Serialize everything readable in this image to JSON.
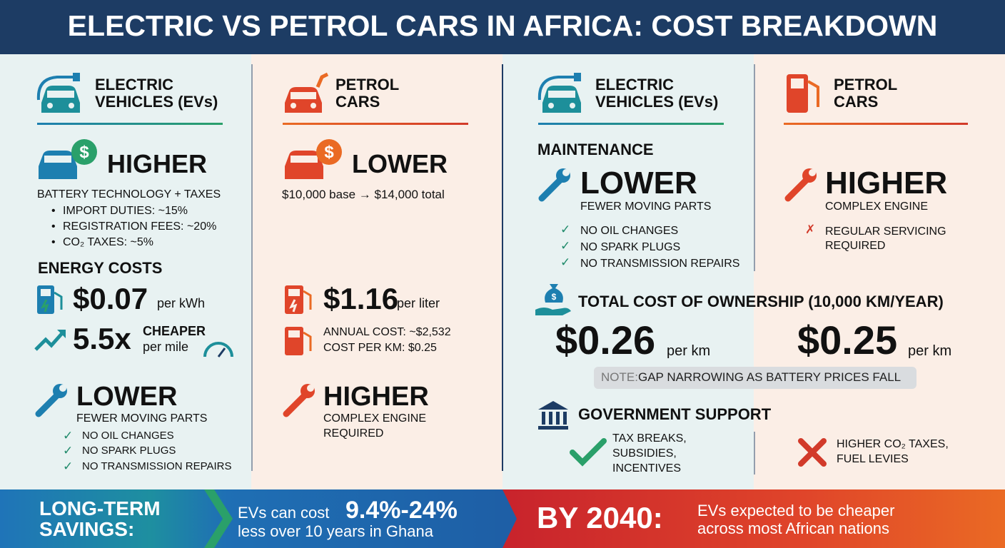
{
  "title": "ELECTRIC VS PETROL CARS IN AFRICA: COST BREAKDOWN",
  "left": {
    "ev_header": "ELECTRIC VEHICLES (EVs)",
    "petrol_header": "PETROL CARS",
    "purchase": {
      "ev": {
        "level": "HIGHER",
        "reason": "BATTERY TECHNOLOGY + TAXES",
        "bullets": [
          "IMPORT DUTIES: ~15%",
          "REGISTRATION FEES: ~20%",
          "CO₂ TAXES: ~5%"
        ]
      },
      "petrol": {
        "level": "LOWER",
        "range": "$10,000 base → $14,000 total"
      }
    },
    "energy": {
      "heading": "ENERGY COSTS",
      "ev": {
        "price": "$0.07",
        "unit": "per kWh",
        "ratio": "5.5x",
        "ratio_label": "CHEAPER",
        "ratio_unit": "per mile"
      },
      "petrol": {
        "price": "$1.16",
        "unit": "per liter",
        "details": [
          "ANNUAL COST: ~$2,532",
          "COST PER KM: $0.25"
        ]
      }
    },
    "maintenance": {
      "ev": {
        "level": "LOWER",
        "reason": "FEWER MOVING PARTS",
        "checks": [
          "NO OIL CHANGES",
          "NO SPARK PLUGS",
          "NO TRANSMISSION REPAIRS"
        ]
      },
      "petrol": {
        "level": "HIGHER",
        "reason_lines": [
          "COMPLEX ENGINE",
          "REQUIRED"
        ]
      }
    }
  },
  "right": {
    "ev_header": "ELECTRIC VEHICLES (EVs)",
    "petrol_header": "PETROL CARS",
    "maintenance": {
      "heading": "MAINTENANCE",
      "ev": {
        "level": "LOWER",
        "reason": "FEWER MOVING PARTS",
        "checks": [
          "NO OIL CHANGES",
          "NO SPARK PLUGS",
          "NO TRANSMISSION REPAIRS"
        ]
      },
      "petrol": {
        "level": "HIGHER",
        "reason": "COMPLEX ENGINE",
        "cross": "REGULAR SERVICING REQUIRED"
      }
    },
    "tco": {
      "heading": "TOTAL COST OF OWNERSHIP (10,000 KM/YEAR)",
      "ev": {
        "price": "$0.26",
        "unit": "per km"
      },
      "petrol": {
        "price": "$0.25",
        "unit": "per km"
      },
      "note_label": "NOTE:",
      "note": "GAP NARROWING AS BATTERY PRICES FALL"
    },
    "government": {
      "heading": "GOVERNMENT SUPPORT",
      "ev_lines": [
        "TAX BREAKS,",
        "SUBSIDIES,",
        "INCENTIVES"
      ],
      "petrol_lines": [
        "HIGHER CO₂ TAXES,",
        "FUEL LEVIES"
      ]
    }
  },
  "footer": {
    "savings_label": "LONG-TERM SAVINGS:",
    "savings_pre": "EVs can cost",
    "savings_value": "9.4%-24%",
    "savings_post": "less over 10 years in Ghana",
    "future_label": "BY 2040:",
    "future_text": "EVs expected to be cheaper across most African nations"
  }
}
